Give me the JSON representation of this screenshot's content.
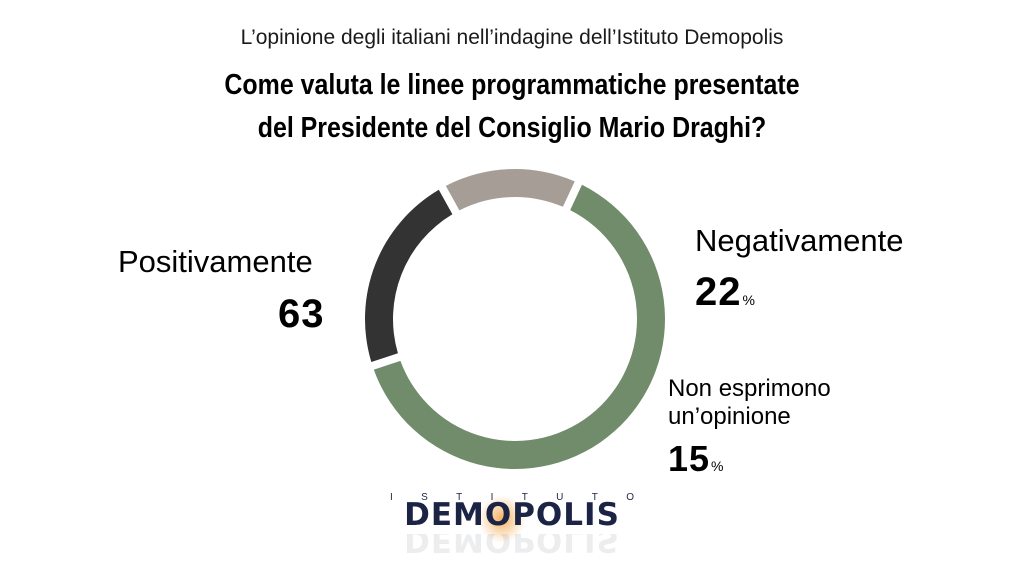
{
  "header": {
    "subtitle": "L’opinione degli italiani nell’indagine dell’Istituto Demopolis",
    "title_line1": "Come valuta le linee programmatiche presentate",
    "title_line2": "del Presidente del Consiglio Mario Draghi?"
  },
  "chart_data": {
    "type": "pie",
    "style": "donut",
    "title": "Come valuta le linee programmatiche presentate del Presidente del Consiglio Mario Draghi?",
    "subtitle": "L’opinione degli italiani nell’indagine dell’Istituto Demopolis",
    "unit": "%",
    "categories": [
      "Positivamente",
      "Negativamente",
      "Non esprimono un’opinione"
    ],
    "values": [
      63,
      22,
      15
    ],
    "value_labels": [
      "63",
      "22",
      "15"
    ],
    "colors": [
      "#708c6a",
      "#333333",
      "#a69e96"
    ],
    "category_lines": [
      [
        "Positivamente"
      ],
      [
        "Negativamente"
      ],
      [
        "Non esprimono",
        "un’opinione"
      ]
    ]
  },
  "logo": {
    "sup": [
      "I",
      "S",
      "T",
      "I",
      "T",
      "U",
      "T",
      "O"
    ],
    "name": "DEMOPOLIS"
  }
}
